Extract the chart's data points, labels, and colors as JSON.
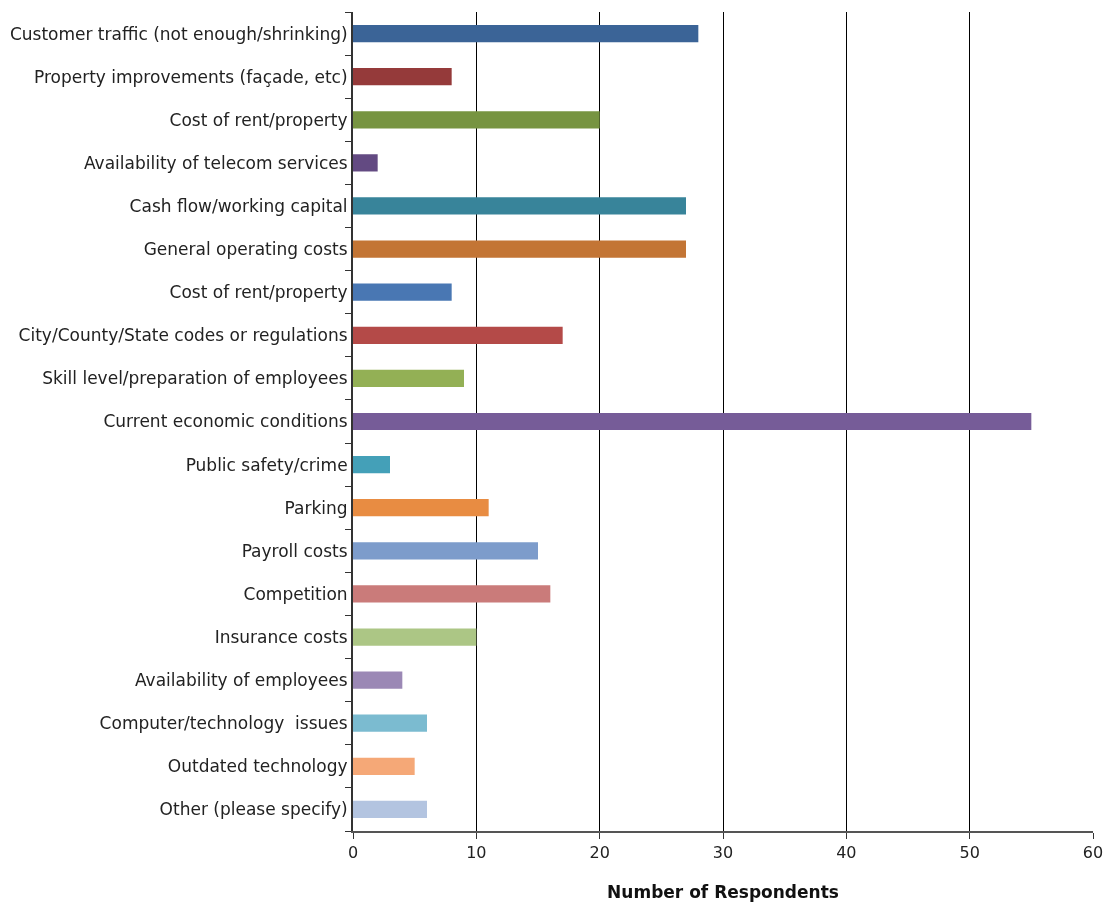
{
  "chart_data": {
    "type": "bar",
    "orientation": "horizontal",
    "xlabel": "Number of Respondents",
    "categories": [
      "Customer traffic (not enough/shrinking)",
      "Property improvements (façade, etc)",
      "Cost of rent/property",
      "Availability of telecom services",
      "Cash flow/working capital",
      "General operating costs",
      "Cost of rent/property",
      "City/County/State codes or regulations",
      "Skill level/preparation of employees",
      "Current economic conditions",
      "Public safety/crime",
      "Parking",
      "Payroll costs",
      "Competition",
      "Insurance costs",
      "Availability of employees",
      "Computer/technology  issues",
      "Outdated technology",
      "Other (please specify)"
    ],
    "values": [
      28,
      8,
      20,
      2,
      27,
      27,
      8,
      17,
      9,
      55,
      3,
      11,
      15,
      16,
      10,
      4,
      6,
      5,
      6
    ],
    "colors": [
      "#3b6497",
      "#953a3a",
      "#779441",
      "#634a82",
      "#38849a",
      "#c37535",
      "#4977b3",
      "#b44a48",
      "#93b055",
      "#765c98",
      "#44a0b8",
      "#e88c42",
      "#7d9ccb",
      "#ca7b7a",
      "#acc685",
      "#9b88b5",
      "#7bbbd0",
      "#f5a877",
      "#b3c4e0"
    ],
    "xlim": [
      0,
      60
    ],
    "xticks": [
      0,
      10,
      20,
      30,
      40,
      50,
      60
    ],
    "grid": "x"
  }
}
